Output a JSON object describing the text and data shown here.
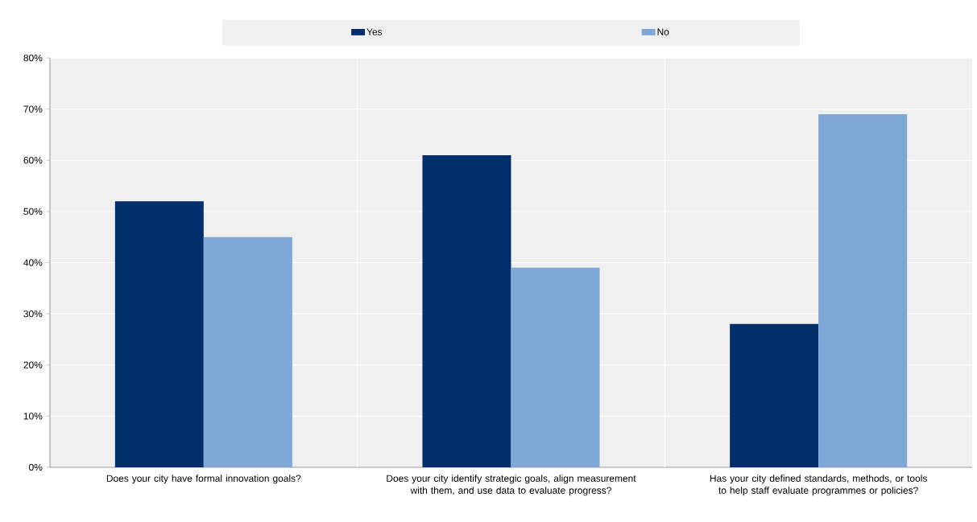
{
  "chart_data": {
    "type": "bar",
    "categories": [
      "Does your city have formal innovation goals?",
      "Does your city identify strategic goals, align measurement with them, and use data to evaluate progress?",
      "Has your city defined standards, methods, or tools to help staff evaluate programmes or policies?"
    ],
    "series": [
      {
        "name": "Yes",
        "color": "#002f6c",
        "values": [
          52,
          61,
          28
        ]
      },
      {
        "name": "No",
        "color": "#7fa8d9",
        "values": [
          45,
          39,
          69
        ]
      }
    ],
    "ylim": [
      0,
      80
    ],
    "yticks": [
      {
        "value": 0,
        "label": "0%"
      },
      {
        "value": 10,
        "label": "10%"
      },
      {
        "value": 20,
        "label": "20%"
      },
      {
        "value": 30,
        "label": "30%"
      },
      {
        "value": 40,
        "label": "40%"
      },
      {
        "value": 50,
        "label": "50%"
      },
      {
        "value": 60,
        "label": "60%"
      },
      {
        "value": 70,
        "label": "70%"
      },
      {
        "value": 80,
        "label": "80%"
      }
    ],
    "grid": true,
    "legend": "top"
  }
}
